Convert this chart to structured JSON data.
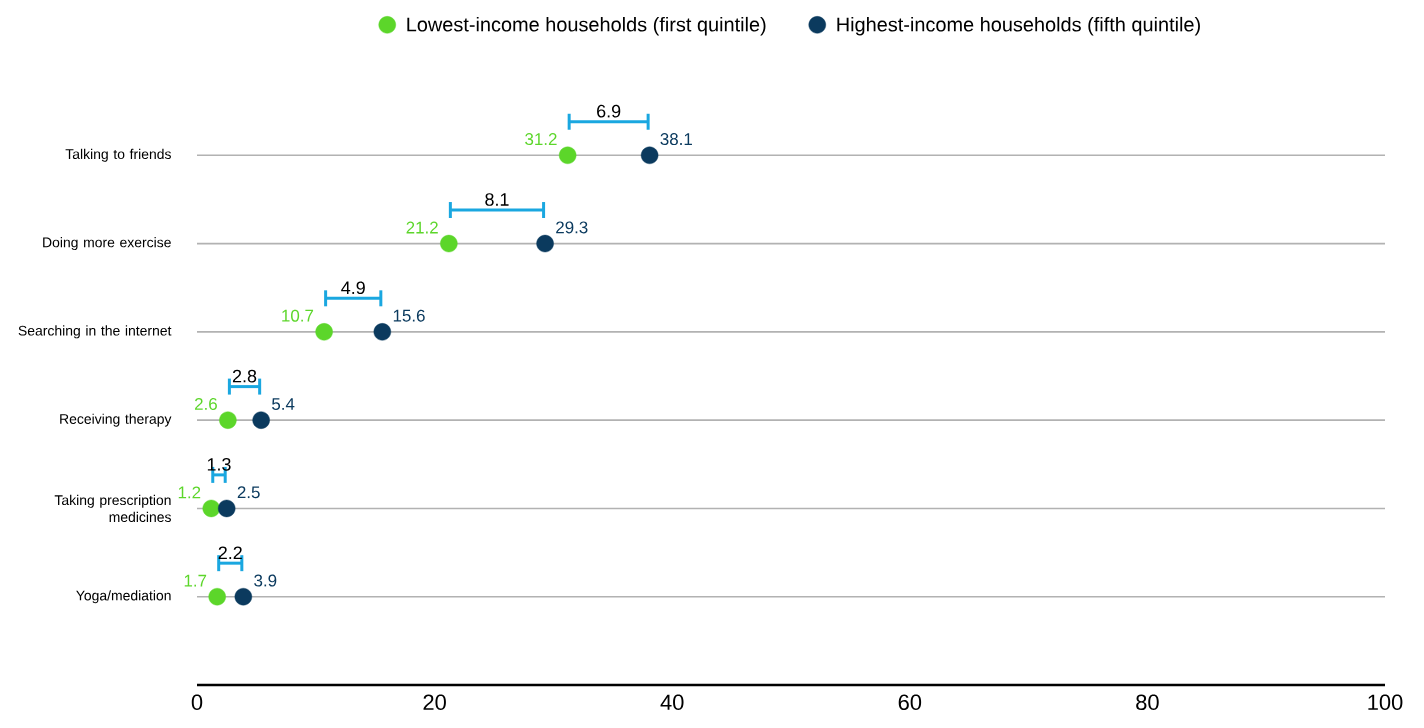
{
  "chart_data": {
    "type": "scatter",
    "orientation": "horizontal",
    "categories": [
      "Talking to friends",
      "Doing more exercise",
      "Searching in the internet",
      "Receiving therapy",
      "Taking prescription medicines",
      "Yoga/mediation"
    ],
    "series": [
      {
        "name": "Lowest-income households (first quintile)",
        "color": "#5cd62a",
        "values": [
          31.2,
          21.2,
          10.7,
          2.6,
          1.2,
          1.7
        ]
      },
      {
        "name": "Highest-income households (fifth quintile)",
        "color": "#0b3a5e",
        "values": [
          38.1,
          29.3,
          15.6,
          5.4,
          2.5,
          3.9
        ]
      }
    ],
    "annotations": [
      "6.9",
      "8.1",
      "4.9",
      "2.8",
      "1.3",
      "2.2"
    ],
    "xlim": [
      0,
      100
    ],
    "xticks": [
      0,
      20,
      40,
      60,
      80,
      100
    ],
    "data_labels": true,
    "grid": "y",
    "legend": "top",
    "marker": "circle"
  }
}
